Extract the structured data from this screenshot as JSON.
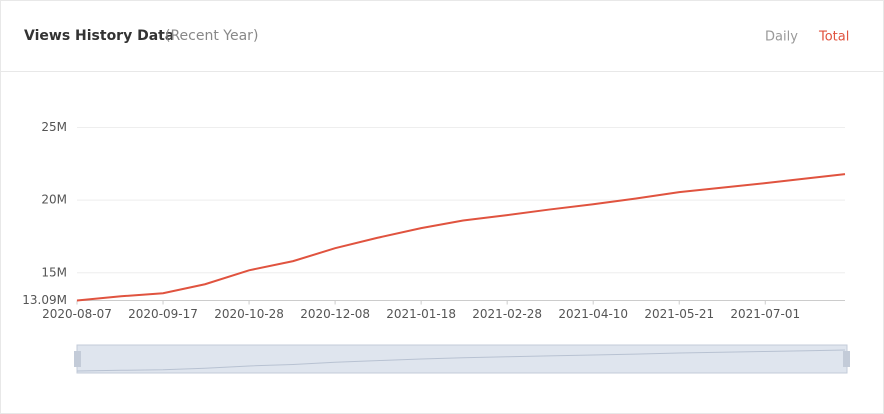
{
  "header": {
    "title": "Views History Data",
    "subtitle": "(Recent Year)",
    "tabs": [
      "Daily",
      "Total"
    ]
  },
  "chart_data": {
    "type": "line",
    "x": [
      "2020-08-07",
      "2020-08-28",
      "2020-09-17",
      "2020-10-07",
      "2020-10-28",
      "2020-11-18",
      "2020-12-08",
      "2020-12-28",
      "2021-01-18",
      "2021-02-07",
      "2021-02-28",
      "2021-03-20",
      "2021-04-10",
      "2021-04-30",
      "2021-05-21",
      "2021-06-10",
      "2021-07-01",
      "2021-07-21",
      "2021-08-08"
    ],
    "series": [
      {
        "name": "Total",
        "color": "#e0533f",
        "values": [
          13.09,
          13.38,
          13.59,
          14.21,
          15.17,
          15.8,
          16.69,
          17.4,
          18.07,
          18.6,
          18.97,
          19.35,
          19.72,
          20.1,
          20.55,
          20.85,
          21.17,
          21.5,
          21.79
        ]
      }
    ],
    "ylim": [
      13.09,
      25
    ],
    "yticks": [
      {
        "value": 13.09,
        "label": "13.09M"
      },
      {
        "value": 15,
        "label": "15M"
      },
      {
        "value": 20,
        "label": "20M"
      },
      {
        "value": 25,
        "label": "25M"
      }
    ],
    "xticks": [
      "2020-08-07",
      "2020-09-17",
      "2020-10-28",
      "2020-12-08",
      "2021-01-18",
      "2021-02-28",
      "2021-04-10",
      "2021-05-21",
      "2021-07-01"
    ],
    "grid": true
  }
}
